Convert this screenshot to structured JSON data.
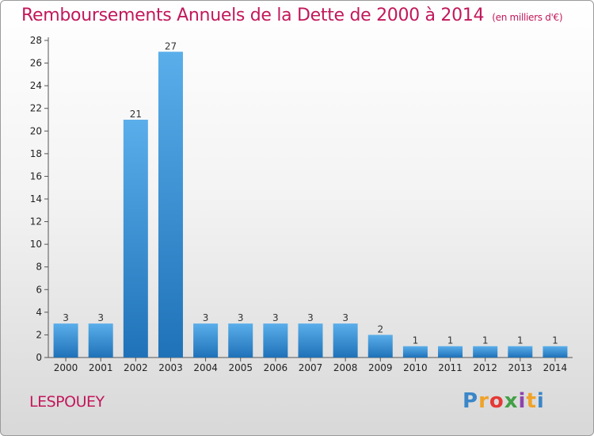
{
  "title": "Remboursements Annuels de la Dette de 2000 à 2014",
  "unit": "(en milliers d'€)",
  "commune": "LESPOUEY",
  "logo_text": "Proxiti",
  "colors": {
    "title": "#c2185b",
    "bar_top": "#5aaeea",
    "bar_bottom": "#1f72b8"
  },
  "chart_data": {
    "type": "bar",
    "categories": [
      "2000",
      "2001",
      "2002",
      "2003",
      "2004",
      "2005",
      "2006",
      "2007",
      "2008",
      "2009",
      "2010",
      "2011",
      "2012",
      "2013",
      "2014"
    ],
    "values": [
      3,
      3,
      21,
      27,
      3,
      3,
      3,
      3,
      3,
      2,
      1,
      1,
      1,
      1,
      1
    ],
    "ylim": [
      0,
      28
    ],
    "yticks": [
      0,
      2,
      4,
      6,
      8,
      10,
      12,
      14,
      16,
      18,
      20,
      22,
      24,
      26,
      28
    ],
    "grid": false,
    "data_labels": true
  }
}
